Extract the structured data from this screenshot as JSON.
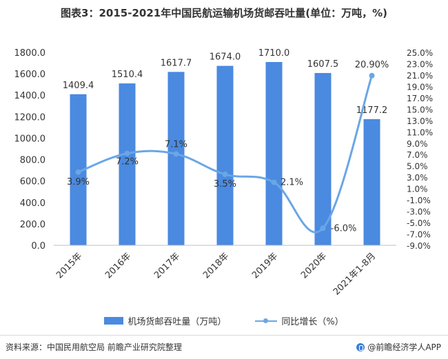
{
  "header": {
    "title": "图表3：2015-2021年中国民航运输机场货邮吞吐量(单位：万吨，%)"
  },
  "chart_data": {
    "type": "bar",
    "categories": [
      "2015年",
      "2016年",
      "2017年",
      "2018年",
      "2019年",
      "2020年",
      "2021年1-8月"
    ],
    "series": [
      {
        "name": "机场货邮吞吐量（万吨）",
        "type": "bar",
        "axis": "left",
        "color": "#4a8ae0",
        "values": [
          1409.4,
          1510.4,
          1617.7,
          1674.0,
          1710.0,
          1607.5,
          1177.2
        ],
        "labels": [
          "1409.4",
          "1510.4",
          "1617.7",
          "1674.0",
          "1710.0",
          "1607.5",
          "1177.2"
        ]
      },
      {
        "name": "同比增长（%）",
        "type": "line",
        "axis": "right",
        "color": "#6aa6e6",
        "values": [
          3.9,
          7.2,
          7.1,
          3.5,
          2.1,
          -6.0,
          20.9
        ],
        "labels": [
          "3.9%",
          "7.2%",
          "7.1%",
          "3.5%",
          "2.1%",
          "-6.0%",
          "20.90%"
        ]
      }
    ],
    "y_left": {
      "min": 0,
      "max": 1800,
      "ticks": [
        "0.0",
        "200.0",
        "400.0",
        "600.0",
        "800.0",
        "1000.0",
        "1200.0",
        "1400.0",
        "1600.0",
        "1800.0"
      ]
    },
    "y_right": {
      "min": -9,
      "max": 25,
      "ticks": [
        "-9.0%",
        "-7.0%",
        "-5.0%",
        "-3.0%",
        "-1.0%",
        "1.0%",
        "3.0%",
        "5.0%",
        "7.0%",
        "9.0%",
        "11.0%",
        "13.0%",
        "15.0%",
        "17.0%",
        "19.0%",
        "21.0%",
        "23.0%",
        "25.0%"
      ]
    },
    "grid": false,
    "legend": "bottom"
  },
  "legend": {
    "bar_label": "机场货邮吞吐量（万吨）",
    "line_label": "同比增长（%）"
  },
  "footer": {
    "source": "资料来源：中国民用航空局 前瞻产业研究院整理",
    "brand": "@前瞻经济学人APP"
  }
}
